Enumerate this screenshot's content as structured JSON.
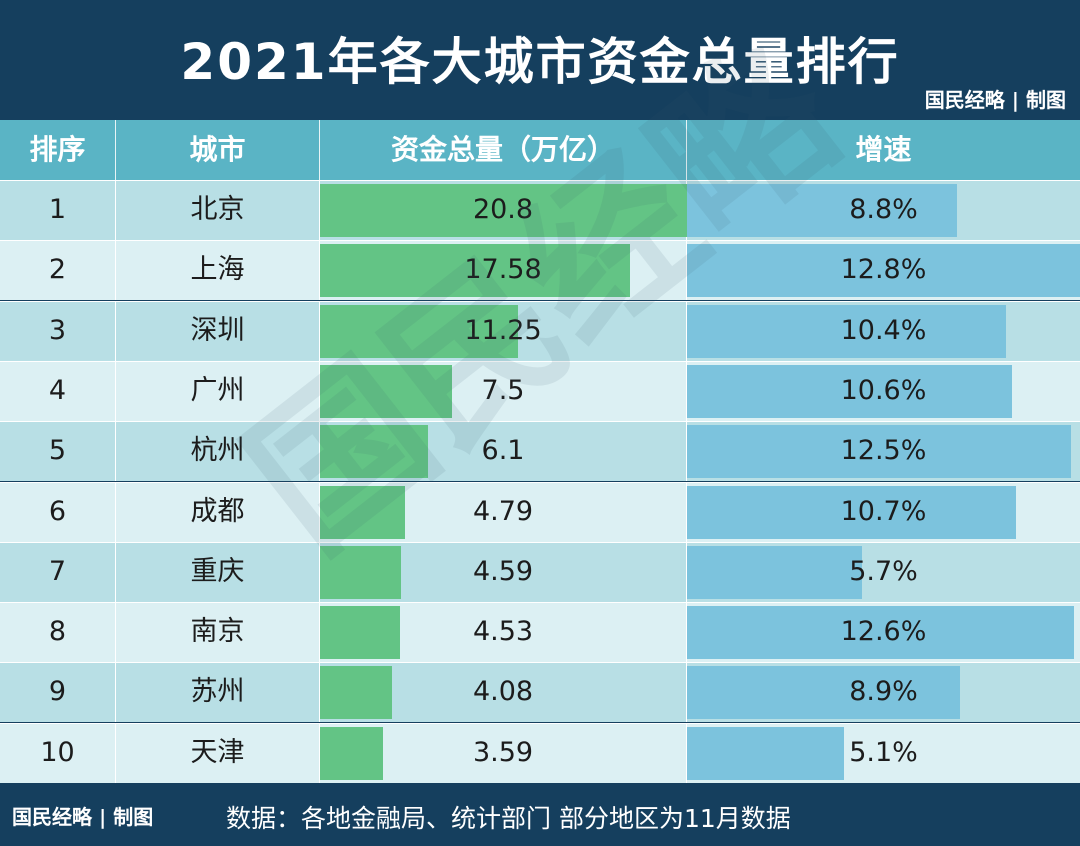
{
  "header": {
    "title": "2021年各大城市资金总量排行",
    "brand": "国民经略 | 制图"
  },
  "table": {
    "columns": [
      "排序",
      "城市",
      "资金总量（万亿）",
      "增速"
    ]
  },
  "chart_data": {
    "type": "table",
    "title": "2021年各大城市资金总量排行",
    "columns": [
      "排序",
      "城市",
      "资金总量（万亿）",
      "增速"
    ],
    "rows": [
      {
        "rank": "1",
        "city": "北京",
        "total": "20.8",
        "growth": "8.8%"
      },
      {
        "rank": "2",
        "city": "上海",
        "total": "17.58",
        "growth": "12.8%"
      },
      {
        "rank": "3",
        "city": "深圳",
        "total": "11.25",
        "growth": "10.4%"
      },
      {
        "rank": "4",
        "city": "广州",
        "total": "7.5",
        "growth": "10.6%"
      },
      {
        "rank": "5",
        "city": "杭州",
        "total": "6.1",
        "growth": "12.5%"
      },
      {
        "rank": "6",
        "city": "成都",
        "total": "4.79",
        "growth": "10.7%"
      },
      {
        "rank": "7",
        "city": "重庆",
        "total": "4.59",
        "growth": "5.7%"
      },
      {
        "rank": "8",
        "city": "南京",
        "total": "4.53",
        "growth": "12.6%"
      },
      {
        "rank": "9",
        "city": "苏州",
        "total": "4.08",
        "growth": "8.9%"
      },
      {
        "rank": "10",
        "city": "天津",
        "total": "3.59",
        "growth": "5.1%"
      }
    ],
    "total_max": 20.8,
    "growth_max": 12.8,
    "colors": {
      "header_bg": "#153f5e",
      "column_header_bg": "#5ab4c5",
      "total_bar": "#63c485",
      "growth_bar": "#7cc3dd",
      "row_dark": "#b8dfe5",
      "row_light": "#dcf0f3"
    }
  },
  "footer": {
    "brand": "国民经略 | 制图",
    "source": "数据：各地金融局、统计部门 部分地区为11月数据"
  },
  "watermark": "国民经略"
}
